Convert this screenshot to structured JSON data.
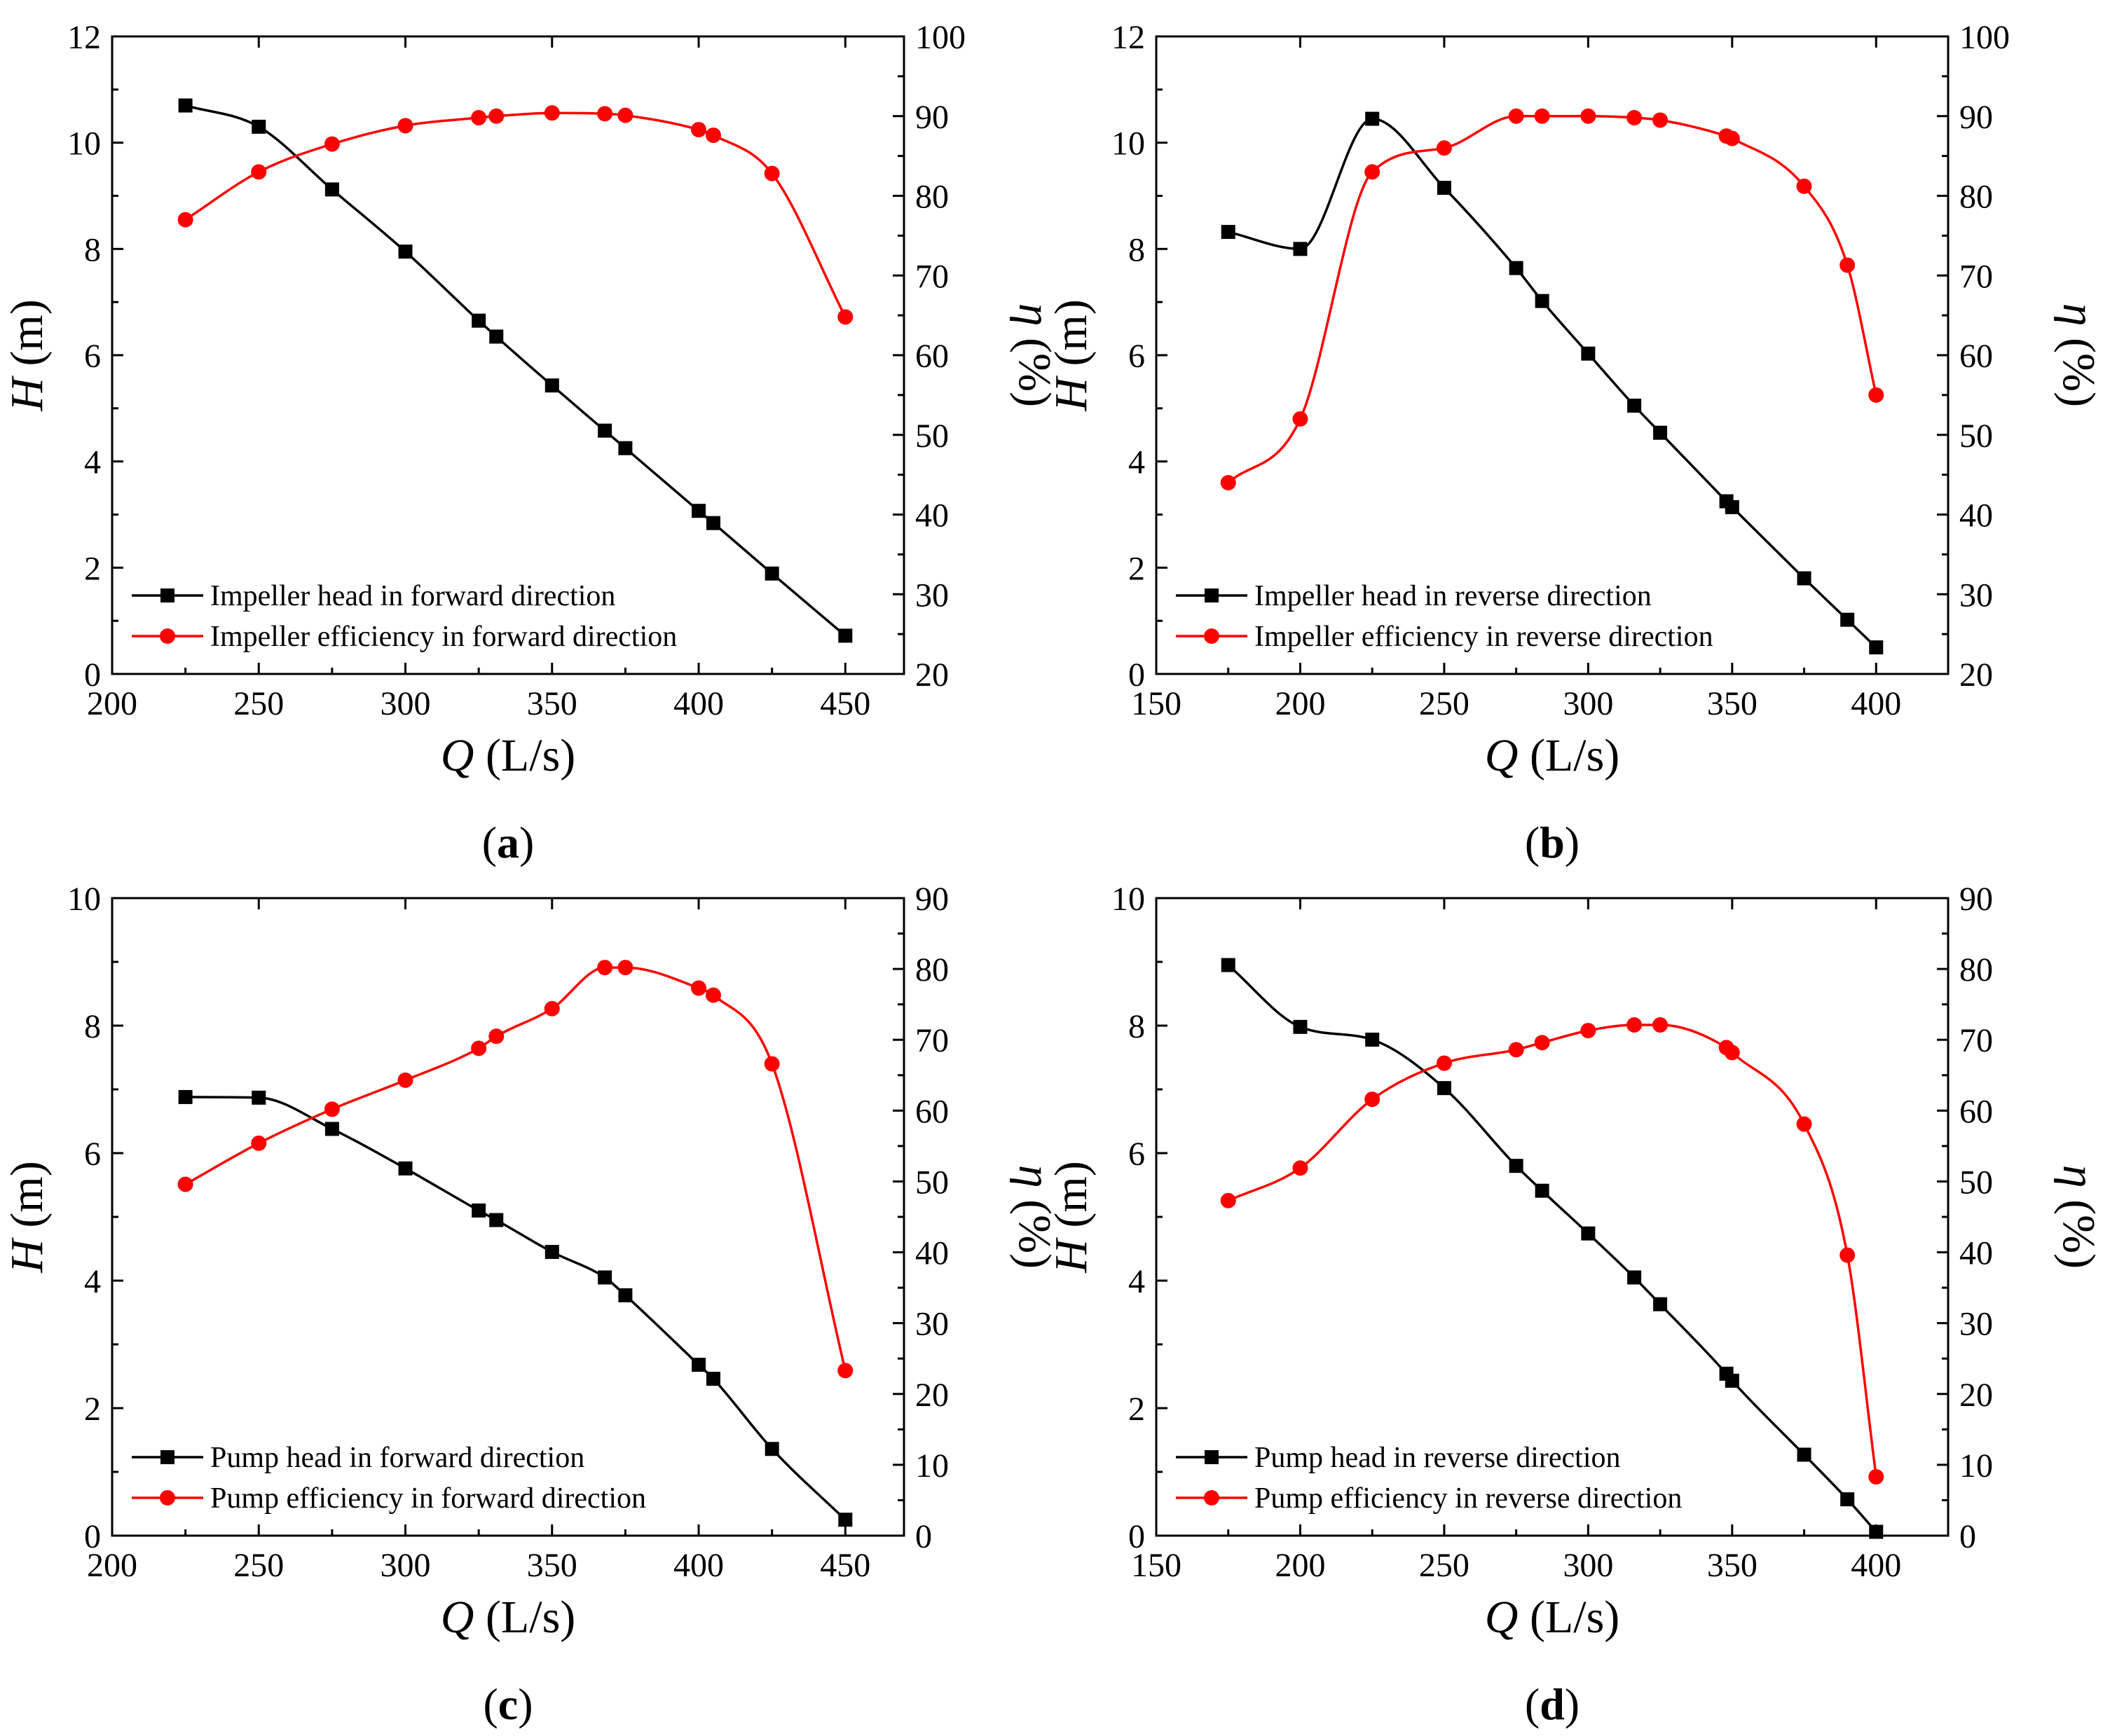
{
  "figure": {
    "x_axis_title_var": "Q",
    "x_axis_title_unit": " (L/s)",
    "left_axis_title_var": "H",
    "left_axis_title_unit": " (m)",
    "right_axis_title_var": "η",
    "right_axis_title_unit": " (%)"
  },
  "colors": {
    "head": "#000000",
    "efficiency": "#ff0000"
  },
  "chart_data": [
    {
      "type": "line",
      "panel": "a",
      "label": "(a)",
      "xlabel": "Q (L/s)",
      "ylabel": "H (m)",
      "y2label": "η (%)",
      "xlim": [
        200,
        470
      ],
      "xticks": [
        200,
        250,
        300,
        350,
        400,
        450
      ],
      "ylim": [
        0,
        12
      ],
      "yticks": [
        0,
        2,
        4,
        6,
        8,
        10,
        12
      ],
      "y2lim": [
        20,
        100
      ],
      "y2ticks": [
        20,
        30,
        40,
        50,
        60,
        70,
        80,
        90,
        100
      ],
      "legend_position": "bottom-left",
      "series": [
        {
          "name": "Impeller head in forward direction",
          "axis": "left",
          "marker": "square",
          "color": "#000000",
          "x": [
            225,
            250,
            275,
            300,
            325,
            331,
            350,
            368,
            375,
            400,
            405,
            425,
            450
          ],
          "values": [
            10.7,
            10.3,
            9.12,
            7.95,
            6.65,
            6.35,
            5.43,
            4.58,
            4.25,
            3.07,
            2.84,
            1.89,
            0.72
          ]
        },
        {
          "name": "Impeller efficiency in forward direction",
          "axis": "right",
          "marker": "circle",
          "color": "#ff0000",
          "x": [
            225,
            250,
            275,
            300,
            325,
            331,
            350,
            368,
            375,
            400,
            405,
            425,
            450
          ],
          "values": [
            77.0,
            83.0,
            86.5,
            88.8,
            89.8,
            90.0,
            90.4,
            90.3,
            90.1,
            88.3,
            87.6,
            82.8,
            64.8
          ]
        }
      ]
    },
    {
      "type": "line",
      "panel": "b",
      "label": "(b)",
      "xlabel": "Q (L/s)",
      "ylabel": "H (m)",
      "y2label": "η (%)",
      "xlim": [
        150,
        425
      ],
      "xticks": [
        150,
        200,
        250,
        300,
        350,
        400
      ],
      "ylim": [
        0,
        12
      ],
      "yticks": [
        0,
        2,
        4,
        6,
        8,
        10,
        12
      ],
      "y2lim": [
        20,
        100
      ],
      "y2ticks": [
        20,
        30,
        40,
        50,
        60,
        70,
        80,
        90,
        100
      ],
      "legend_position": "bottom-left",
      "series": [
        {
          "name": "Impeller head in reverse direction",
          "axis": "left",
          "marker": "square",
          "color": "#000000",
          "x": [
            175,
            200,
            225,
            250,
            275,
            284,
            300,
            316,
            325,
            348,
            350,
            375,
            390,
            400
          ],
          "values": [
            8.32,
            8.0,
            10.45,
            9.15,
            7.64,
            7.02,
            6.03,
            5.05,
            4.54,
            3.25,
            3.14,
            1.8,
            1.02,
            0.5
          ]
        },
        {
          "name": "Impeller efficiency in reverse direction",
          "axis": "right",
          "marker": "circle",
          "color": "#ff0000",
          "x": [
            175,
            200,
            225,
            250,
            275,
            284,
            300,
            316,
            325,
            348,
            350,
            375,
            390,
            400
          ],
          "values": [
            44.0,
            52.0,
            83.0,
            86.0,
            90.0,
            90.0,
            90.0,
            89.8,
            89.5,
            87.5,
            87.2,
            81.2,
            71.3,
            55.0
          ]
        }
      ]
    },
    {
      "type": "line",
      "panel": "c",
      "label": "(c)",
      "xlabel": "Q (L/s)",
      "ylabel": "H (m)",
      "y2label": "η (%)",
      "xlim": [
        200,
        470
      ],
      "xticks": [
        200,
        250,
        300,
        350,
        400,
        450
      ],
      "ylim": [
        0,
        10
      ],
      "yticks": [
        0,
        2,
        4,
        6,
        8,
        10
      ],
      "y2lim": [
        0,
        90
      ],
      "y2ticks": [
        0,
        10,
        20,
        30,
        40,
        50,
        60,
        70,
        80,
        90
      ],
      "legend_position": "bottom-left",
      "series": [
        {
          "name": "Pump head in forward direction",
          "axis": "left",
          "marker": "square",
          "color": "#000000",
          "x": [
            225,
            250,
            275,
            300,
            325,
            331,
            350,
            368,
            375,
            400,
            405,
            425,
            450
          ],
          "values": [
            6.88,
            6.87,
            6.38,
            5.76,
            5.1,
            4.95,
            4.45,
            4.05,
            3.77,
            2.68,
            2.46,
            1.36,
            0.25
          ]
        },
        {
          "name": "Pump efficiency in forward direction",
          "axis": "right",
          "marker": "circle",
          "color": "#ff0000",
          "x": [
            225,
            250,
            275,
            300,
            325,
            331,
            350,
            368,
            375,
            400,
            405,
            425,
            450
          ],
          "values": [
            49.6,
            55.4,
            60.2,
            64.3,
            68.8,
            70.5,
            74.4,
            80.2,
            80.2,
            77.3,
            76.3,
            66.6,
            23.3
          ]
        }
      ]
    },
    {
      "type": "line",
      "panel": "d",
      "label": "(d)",
      "xlabel": "Q (L/s)",
      "ylabel": "H (m)",
      "y2label": "η (%)",
      "xlim": [
        150,
        425
      ],
      "xticks": [
        150,
        200,
        250,
        300,
        350,
        400
      ],
      "ylim": [
        0,
        10
      ],
      "yticks": [
        0,
        2,
        4,
        6,
        8,
        10
      ],
      "y2lim": [
        0,
        90
      ],
      "y2ticks": [
        0,
        10,
        20,
        30,
        40,
        50,
        60,
        70,
        80,
        90
      ],
      "legend_position": "bottom-left",
      "series": [
        {
          "name": "Pump head in reverse direction",
          "axis": "left",
          "marker": "square",
          "color": "#000000",
          "x": [
            175,
            200,
            225,
            250,
            275,
            284,
            300,
            316,
            325,
            348,
            350,
            375,
            390,
            400
          ],
          "values": [
            8.95,
            7.98,
            7.78,
            7.02,
            5.8,
            5.41,
            4.74,
            4.05,
            3.63,
            2.54,
            2.43,
            1.27,
            0.57,
            0.06
          ]
        },
        {
          "name": "Pump efficiency in reverse direction",
          "axis": "right",
          "marker": "circle",
          "color": "#ff0000",
          "x": [
            175,
            200,
            225,
            250,
            275,
            284,
            300,
            316,
            325,
            348,
            350,
            375,
            390,
            400
          ],
          "values": [
            47.3,
            51.9,
            61.6,
            66.7,
            68.6,
            69.6,
            71.3,
            72.1,
            72.1,
            68.9,
            68.2,
            58.1,
            39.6,
            8.3
          ]
        }
      ]
    }
  ]
}
